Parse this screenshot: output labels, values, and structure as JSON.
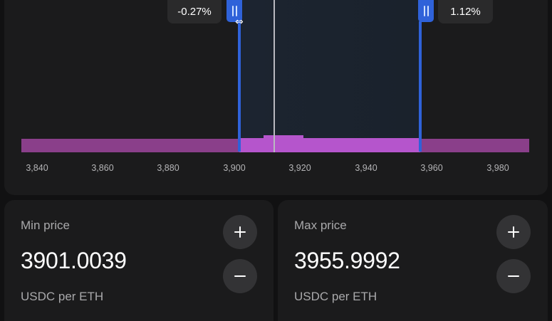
{
  "range_chart": {
    "lower_percent": "-0.27%",
    "upper_percent": "1.12%",
    "ticks": [
      "3,840",
      "3,860",
      "3,880",
      "3,900",
      "3,920",
      "3,940",
      "3,960",
      "3,980"
    ]
  },
  "min_price": {
    "label": "Min price",
    "value": "3901.0039",
    "unit": "USDC per ETH"
  },
  "max_price": {
    "label": "Max price",
    "value": "3955.9992",
    "unit": "USDC per ETH"
  },
  "colors": {
    "handle": "#2f62d9",
    "liquidity": "#8a3f8a",
    "liquidity_active": "#b555cc",
    "range_shade": "#1c2430"
  },
  "icons": {
    "increase": "plus-icon",
    "decrease": "minus-icon",
    "drag": "move-cursor-icon"
  }
}
